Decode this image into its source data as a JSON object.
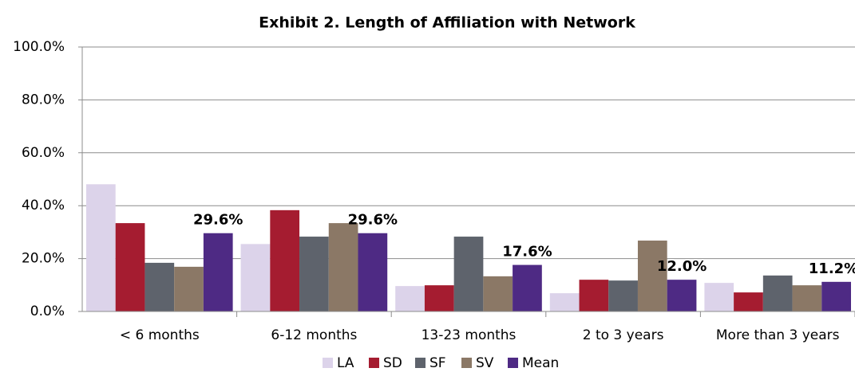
{
  "chart_data": {
    "type": "bar",
    "title": "Exhibit 2. Length of Affiliation with Network",
    "categories": [
      "< 6 months",
      "6-12 months",
      "13-23 months",
      "2 to 3 years",
      "More than 3 years"
    ],
    "series": [
      {
        "name": "LA",
        "color": "#dcd3ea",
        "values": [
          48.1,
          25.5,
          9.6,
          6.9,
          10.8
        ]
      },
      {
        "name": "SD",
        "color": "#a51c30",
        "values": [
          33.4,
          38.3,
          9.9,
          12.0,
          7.2
        ]
      },
      {
        "name": "SF",
        "color": "#5e636c",
        "values": [
          18.4,
          28.3,
          28.3,
          11.7,
          13.6
        ]
      },
      {
        "name": "SV",
        "color": "#8b7866",
        "values": [
          16.9,
          33.4,
          13.3,
          26.8,
          9.9
        ]
      },
      {
        "name": "Mean",
        "color": "#4e2a84",
        "values": [
          29.6,
          29.6,
          17.6,
          12.0,
          11.2
        ],
        "value_labels": [
          "29.6%",
          "29.6%",
          "17.6%",
          "12.0%",
          "11.2%"
        ]
      }
    ],
    "ylim": [
      0,
      100
    ],
    "yticks": [
      {
        "value": 0,
        "label": "0.0%"
      },
      {
        "value": 20,
        "label": "20.0%"
      },
      {
        "value": 40,
        "label": "40.0%"
      },
      {
        "value": 60,
        "label": "60.0%"
      },
      {
        "value": 80,
        "label": "80.0%"
      },
      {
        "value": 100,
        "label": "100.0%"
      }
    ],
    "grid": true,
    "legend": "bottom"
  }
}
